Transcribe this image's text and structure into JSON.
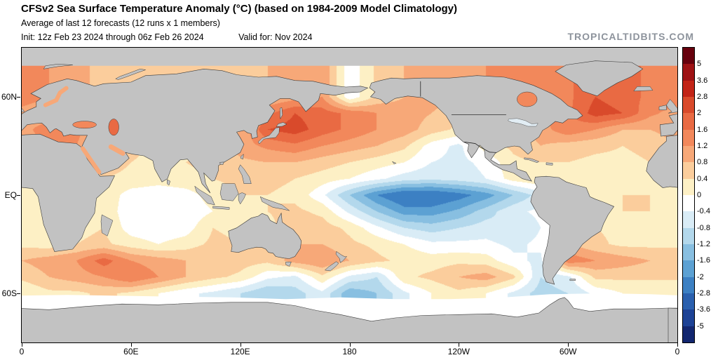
{
  "header": {
    "title": "CFSv2 Sea Surface Temperature Anomaly (°C) (based on 1984-2009 Model Climatology)",
    "subtitle": "Average of last 12 forecasts (12 runs x 1 members)",
    "init_line": "Init: 12z Feb 23 2024 through 06z Feb 26 2024",
    "valid_line": "Valid for: Nov 2024",
    "watermark": "TROPICALTIDBITS.COM"
  },
  "axes": {
    "lat_labels": [
      {
        "label": "60N",
        "lat": 60
      },
      {
        "label": "EQ",
        "lat": 0
      },
      {
        "label": "60S",
        "lat": -60
      }
    ],
    "lon_labels": [
      {
        "label": "0",
        "lon": 0
      },
      {
        "label": "60E",
        "lon": 60
      },
      {
        "label": "120E",
        "lon": 120
      },
      {
        "label": "180",
        "lon": 180
      },
      {
        "label": "120W",
        "lon": 240
      },
      {
        "label": "60W",
        "lon": 300
      },
      {
        "label": "0",
        "lon": 360
      }
    ]
  },
  "colorbar": {
    "tick_labels": [
      "5",
      "3.6",
      "2.8",
      "2",
      "1.6",
      "1.2",
      "0.8",
      "0.4",
      "0",
      "-0.4",
      "-0.8",
      "-1.2",
      "-1.6",
      "-2",
      "-2.8",
      "-3.6",
      "-5"
    ],
    "levels": [
      5,
      3.6,
      2.8,
      2,
      1.6,
      1.2,
      0.8,
      0.4,
      0,
      -0.4,
      -0.8,
      -1.2,
      -1.6,
      -2,
      -2.8,
      -3.6,
      -5
    ],
    "colors_top_to_bottom": [
      "#67000d",
      "#9e1214",
      "#c22417",
      "#d94a2b",
      "#e96a43",
      "#f2885b",
      "#f7a878",
      "#fbcd9c",
      "#fdf0c5",
      "#ffffff",
      "#d9ecf6",
      "#b3d8ec",
      "#88bfe1",
      "#5ca1d3",
      "#3c80c3",
      "#2a60ae",
      "#1d4295",
      "#12266f"
    ]
  },
  "chart_data": {
    "type": "heatmap",
    "title": "CFSv2 Sea Surface Temperature Anomaly (°C) (based on 1984-2009 Model Climatology)",
    "units": "°C",
    "valid_for": "Nov 2024",
    "projection": "plate-carree, longitude 0-360 (Pacific centered), latitude 90N-90S",
    "lat": [
      60,
      50,
      40,
      30,
      20,
      10,
      0,
      -10,
      -20,
      -30,
      -40,
      -50,
      -60
    ],
    "lon": [
      0,
      15,
      30,
      45,
      60,
      75,
      90,
      105,
      120,
      135,
      150,
      165,
      180,
      195,
      210,
      225,
      240,
      255,
      270,
      285,
      300,
      315,
      330,
      345
    ],
    "values": [
      [
        1.5,
        1.2,
        1.0,
        0.6,
        0.5,
        0.5,
        0.5,
        0.5,
        0.6,
        0.8,
        1.0,
        1.2,
        -0.3,
        0.5,
        0.8,
        1.0,
        0.8,
        1.2,
        1.5,
        1.5,
        1.5,
        2.0,
        1.8,
        1.5
      ],
      [
        1.0,
        0.8,
        0.6,
        0.5,
        0.5,
        0.5,
        0.4,
        0.5,
        0.8,
        1.5,
        2.0,
        1.8,
        1.5,
        1.2,
        1.0,
        0.8,
        0.5,
        1.0,
        1.2,
        1.2,
        1.5,
        2.2,
        2.0,
        1.3
      ],
      [
        1.0,
        1.5,
        1.3,
        0.8,
        0.5,
        0.4,
        0.3,
        0.4,
        0.8,
        2.0,
        2.2,
        1.8,
        1.5,
        1.2,
        1.0,
        0.6,
        0.3,
        0.4,
        0.5,
        1.0,
        1.5,
        1.2,
        0.8,
        0.8
      ],
      [
        0.8,
        1.3,
        1.2,
        0.8,
        0.5,
        0.3,
        0.3,
        0.5,
        1.0,
        1.3,
        1.5,
        1.2,
        1.0,
        0.8,
        0.5,
        -0.2,
        -0.5,
        0.2,
        0.5,
        0.8,
        0.6,
        0.5,
        0.4,
        0.5
      ],
      [
        0.4,
        0.4,
        0.6,
        0.6,
        0.4,
        0.3,
        0.4,
        0.5,
        0.7,
        0.8,
        0.8,
        0.6,
        0.4,
        0.2,
        0.0,
        -0.4,
        -0.5,
        -0.3,
        0.3,
        0.4,
        0.4,
        0.3,
        0.3,
        0.4
      ],
      [
        0.3,
        0.3,
        0.3,
        0.4,
        0.3,
        0.2,
        0.3,
        0.4,
        0.5,
        0.5,
        0.4,
        0.2,
        0.0,
        -0.3,
        -0.6,
        -0.7,
        -0.6,
        -0.4,
        0.2,
        0.4,
        0.3,
        0.3,
        0.3,
        0.3
      ],
      [
        0.3,
        0.2,
        0.2,
        0.3,
        -0.2,
        -0.3,
        -0.2,
        0.2,
        0.4,
        0.4,
        0.3,
        -0.3,
        -1.2,
        -2.0,
        -2.5,
        -2.5,
        -2.2,
        -1.8,
        -1.2,
        -0.6,
        0.2,
        0.3,
        0.4,
        0.4
      ],
      [
        0.4,
        0.3,
        0.3,
        0.3,
        -0.3,
        -0.4,
        -0.3,
        0.0,
        0.3,
        0.4,
        0.5,
        0.3,
        -0.5,
        -1.2,
        -1.8,
        -1.8,
        -1.5,
        -1.0,
        -0.5,
        -0.3,
        0.3,
        0.4,
        0.4,
        0.4
      ],
      [
        0.3,
        0.2,
        0.3,
        0.4,
        -0.2,
        -0.3,
        -0.2,
        0.4,
        0.3,
        0.3,
        0.6,
        0.6,
        0.3,
        -0.3,
        -0.8,
        -1.0,
        -0.8,
        -0.6,
        -0.8,
        -0.4,
        0.4,
        0.4,
        0.3,
        0.3
      ],
      [
        0.3,
        0.2,
        0.4,
        0.5,
        0.2,
        0.0,
        0.2,
        0.5,
        0.4,
        0.5,
        0.8,
        0.8,
        0.5,
        0.3,
        0.0,
        -0.3,
        -0.3,
        -0.3,
        -0.5,
        -0.3,
        0.8,
        0.5,
        0.3,
        0.3
      ],
      [
        0.8,
        1.0,
        1.2,
        1.8,
        1.2,
        1.0,
        0.8,
        0.8,
        0.6,
        0.5,
        1.0,
        1.2,
        0.8,
        0.5,
        0.3,
        0.2,
        0.3,
        0.2,
        -0.3,
        -0.5,
        1.5,
        1.2,
        1.0,
        0.8
      ],
      [
        0.5,
        0.8,
        1.0,
        1.2,
        1.6,
        1.2,
        0.8,
        0.5,
        0.3,
        -0.3,
        -0.5,
        0.3,
        -0.5,
        -0.8,
        0.3,
        0.5,
        0.8,
        1.0,
        0.5,
        -0.8,
        -0.5,
        0.5,
        0.5,
        0.5
      ],
      [
        0.0,
        0.3,
        0.3,
        0.5,
        0.3,
        0.0,
        -0.3,
        -0.5,
        -0.8,
        -1.2,
        -1.0,
        -0.5,
        -1.5,
        -1.2,
        -0.5,
        0.0,
        0.3,
        0.0,
        -0.5,
        -1.0,
        -0.8,
        -0.3,
        0.0,
        0.0
      ]
    ],
    "inland_seas": [
      {
        "name": "hudson-bay",
        "shape": "ellipse",
        "lon": 277.5,
        "lat": 58.5,
        "rx": 5.5,
        "ry": 4.5,
        "value": 1.5
      },
      {
        "name": "black-sea",
        "shape": "ellipse",
        "lon": 34.5,
        "lat": 43,
        "rx": 6.5,
        "ry": 2.2,
        "value": 1.4
      },
      {
        "name": "caspian-sea",
        "shape": "ellipse",
        "lon": 50.5,
        "lat": 41.5,
        "rx": 2.8,
        "ry": 5,
        "value": 1.8
      },
      {
        "name": "baltic-sea",
        "shape": "line",
        "pts": [
          [
            13,
            55
          ],
          [
            19,
            58
          ],
          [
            21,
            62.5
          ],
          [
            24.5,
            65.3
          ]
        ],
        "width": 6,
        "value": 1.1
      },
      {
        "name": "red-sea",
        "shape": "line",
        "pts": [
          [
            33.5,
            28.5
          ],
          [
            42.5,
            14
          ]
        ],
        "width": 6,
        "value": 0.9
      },
      {
        "name": "persian-gulf",
        "shape": "line",
        "pts": [
          [
            49,
            29.5
          ],
          [
            55.5,
            25.5
          ]
        ],
        "width": 7,
        "value": 1.0
      }
    ]
  }
}
